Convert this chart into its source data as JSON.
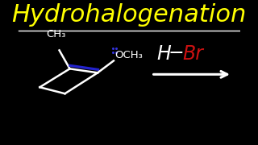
{
  "bg_color": "#000000",
  "title": "Hydrohalogenation",
  "title_color": "#FFFF00",
  "title_fontsize": 22,
  "separator_color": "#FFFFFF",
  "bond_color": "#FFFFFF",
  "double_bond_color": "#2222CC",
  "dots_color": "#3333DD",
  "label_color": "#FFFFFF",
  "ch3_label": "CH₃",
  "och3_label": "OCH₃",
  "reagent_H_color": "#FFFFFF",
  "reagent_Br_color": "#CC1111",
  "arrow_color": "#FFFFFF",
  "lw": 1.8
}
